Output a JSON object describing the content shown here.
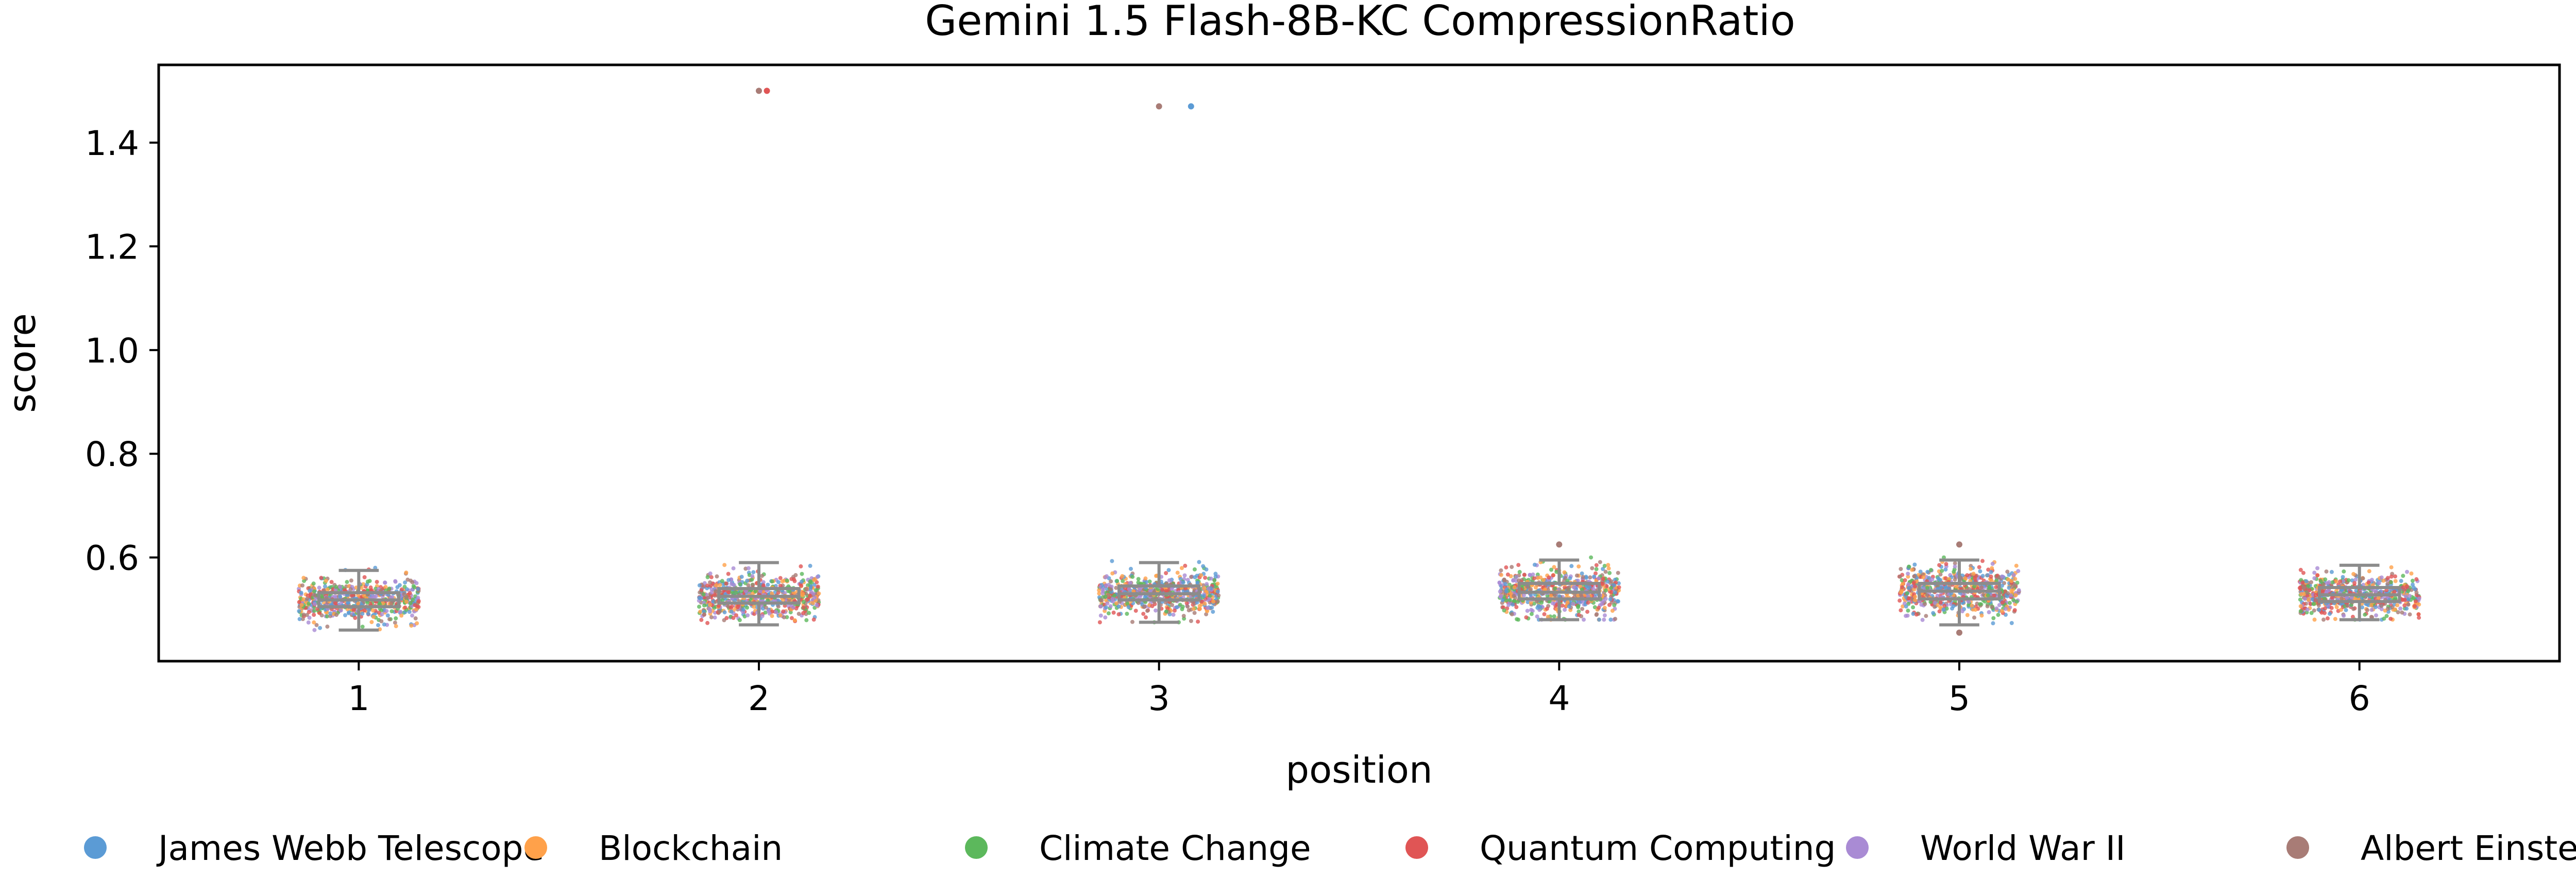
{
  "chart_data": {
    "type": "scatter",
    "title": "Gemini 1.5 Flash-8B-KC CompressionRatio",
    "xlabel": "position",
    "ylabel": "score",
    "ylim": [
      0.4,
      1.55
    ],
    "xlim": [
      0.5,
      6.5
    ],
    "x_ticks": [
      "1",
      "2",
      "3",
      "4",
      "5",
      "6"
    ],
    "y_ticks": [
      "0.6",
      "0.8",
      "1.0",
      "1.2",
      "1.4"
    ],
    "legend_position": "bottom",
    "series": [
      {
        "name": "James Webb Telescope",
        "color": "#5b9bd5"
      },
      {
        "name": "Blockchain",
        "color": "#ffa14a"
      },
      {
        "name": "Climate Change",
        "color": "#5cb85c"
      },
      {
        "name": "Quantum Computing",
        "color": "#e05555"
      },
      {
        "name": "World War II",
        "color": "#a98bd4"
      },
      {
        "name": "Albert Einstein",
        "color": "#a87c76"
      }
    ],
    "boxplots": [
      {
        "position": 1,
        "whisker_low": 0.46,
        "q1": 0.505,
        "median": 0.518,
        "q3": 0.532,
        "whisker_high": 0.575
      },
      {
        "position": 2,
        "whisker_low": 0.47,
        "q1": 0.512,
        "median": 0.525,
        "q3": 0.54,
        "whisker_high": 0.59
      },
      {
        "position": 3,
        "whisker_low": 0.475,
        "q1": 0.518,
        "median": 0.53,
        "q3": 0.545,
        "whisker_high": 0.59
      },
      {
        "position": 4,
        "whisker_low": 0.48,
        "q1": 0.52,
        "median": 0.533,
        "q3": 0.55,
        "whisker_high": 0.595
      },
      {
        "position": 5,
        "whisker_low": 0.47,
        "q1": 0.52,
        "median": 0.535,
        "q3": 0.55,
        "whisker_high": 0.595
      },
      {
        "position": 6,
        "whisker_low": 0.48,
        "q1": 0.515,
        "median": 0.528,
        "q3": 0.542,
        "whisker_high": 0.585
      }
    ],
    "outliers": [
      {
        "position": 2,
        "x": 2.0,
        "y": 1.5,
        "series": "Albert Einstein"
      },
      {
        "position": 2,
        "x": 2.02,
        "y": 1.5,
        "series": "Quantum Computing"
      },
      {
        "position": 3,
        "x": 3.0,
        "y": 1.47,
        "series": "Albert Einstein"
      },
      {
        "position": 3,
        "x": 3.08,
        "y": 1.47,
        "series": "James Webb Telescope"
      },
      {
        "position": 4,
        "x": 4.0,
        "y": 0.625,
        "series": "Albert Einstein"
      },
      {
        "position": 5,
        "x": 5.0,
        "y": 0.625,
        "series": "Albert Einstein"
      },
      {
        "position": 5,
        "x": 5.0,
        "y": 0.455,
        "series": "Albert Einstein"
      }
    ]
  }
}
